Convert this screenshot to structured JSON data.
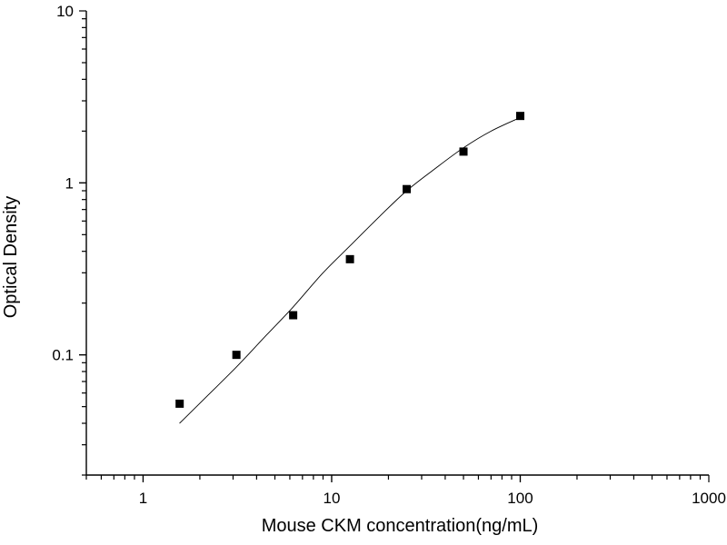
{
  "chart_data": {
    "type": "scatter",
    "title": "",
    "xlabel": "Mouse CKM concentration(ng/mL)",
    "ylabel": "Optical Density",
    "x_scale": "log",
    "y_scale": "log",
    "xlim": [
      0.5,
      1000
    ],
    "ylim": [
      0.02,
      10
    ],
    "x_ticks": [
      {
        "value": 1,
        "label": "1"
      },
      {
        "value": 10,
        "label": "10"
      },
      {
        "value": 100,
        "label": "100"
      },
      {
        "value": 1000,
        "label": "1000"
      }
    ],
    "y_ticks": [
      {
        "value": 0.1,
        "label": "0.1"
      },
      {
        "value": 1,
        "label": "1"
      },
      {
        "value": 10,
        "label": "10"
      }
    ],
    "grid": false,
    "legend": "none",
    "series": [
      {
        "kind": "points",
        "marker": "square",
        "color": "#000000",
        "x": [
          1.5625,
          3.125,
          6.25,
          12.5,
          25,
          50,
          100
        ],
        "y": [
          0.052,
          0.1,
          0.17,
          0.36,
          0.92,
          1.52,
          2.45
        ]
      },
      {
        "kind": "fit-curve",
        "color": "#000000",
        "x": [
          1.56,
          2.2,
          3.125,
          4.5,
          6.25,
          9,
          12.5,
          18,
          25,
          35,
          50,
          70,
          100
        ],
        "y": [
          0.04,
          0.058,
          0.085,
          0.13,
          0.19,
          0.3,
          0.43,
          0.64,
          0.9,
          1.2,
          1.6,
          2.0,
          2.4
        ]
      }
    ]
  }
}
